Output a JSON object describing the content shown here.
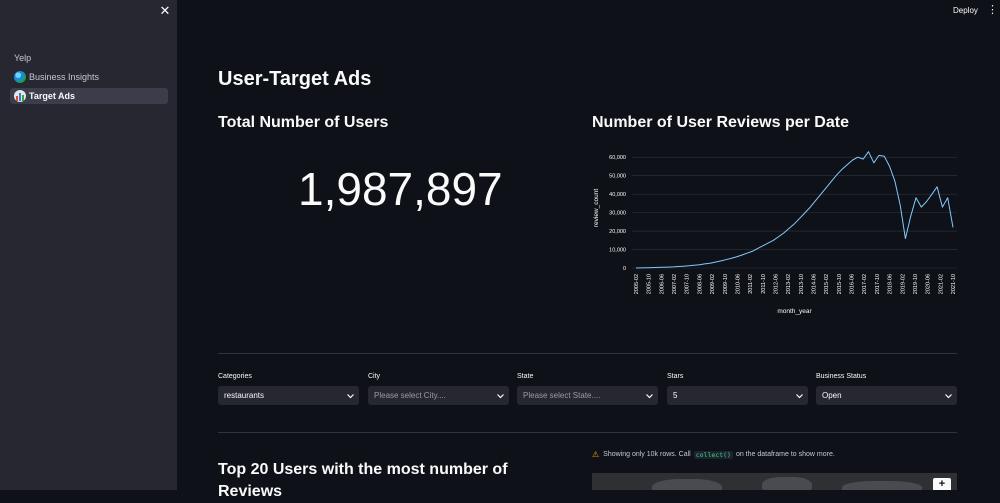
{
  "sidebar": {
    "section": "Yelp",
    "items": [
      {
        "label": "Business Insights",
        "icon": "globe-icon",
        "active": false
      },
      {
        "label": "Target Ads",
        "icon": "bar-chart-icon",
        "active": true
      }
    ]
  },
  "header": {
    "deploy_label": "Deploy"
  },
  "main": {
    "title": "User-Target Ads",
    "metric_heading": "Total Number of Users",
    "metric_value": "1,987,897",
    "chart_heading": "Number of User Reviews per Date",
    "filters": [
      {
        "label": "Categories",
        "value": "restaurants",
        "placeholder": false
      },
      {
        "label": "City",
        "value": "Please select City....",
        "placeholder": true
      },
      {
        "label": "State",
        "value": "Please select State....",
        "placeholder": true
      },
      {
        "label": "Stars",
        "value": "5",
        "placeholder": false
      },
      {
        "label": "Business Status",
        "value": "Open",
        "placeholder": false
      }
    ],
    "top_users_heading": "Top 20 Users with the most number of Reviews",
    "warning": {
      "before": "Showing only 10k rows. Call",
      "code": "collect()",
      "after": "on the dataframe to show more."
    },
    "map_zoom_label": "+"
  },
  "colors": {
    "background": "#0e1117",
    "sidebar": "#262730",
    "line": "#83c9ff",
    "warning": "#f0a50f"
  },
  "chart_data": {
    "type": "line",
    "xlabel": "month_year",
    "ylabel": "review_count",
    "ylim": [
      0,
      65000
    ],
    "yticks": [
      "0",
      "10,000",
      "20,000",
      "30,000",
      "40,000",
      "50,000",
      "60,000"
    ],
    "xticks": [
      "2005-02",
      "2005-10",
      "2006-06",
      "2007-02",
      "2007-10",
      "2008-06",
      "2009-02",
      "2009-10",
      "2010-06",
      "2011-02",
      "2011-10",
      "2012-06",
      "2013-02",
      "2013-10",
      "2014-06",
      "2015-02",
      "2015-10",
      "2016-06",
      "2017-02",
      "2017-10",
      "2018-06",
      "2019-02",
      "2019-10",
      "2020-06",
      "2021-02",
      "2021-10"
    ],
    "series": [
      {
        "values": [
          0,
          50,
          100,
          200,
          300,
          400,
          500,
          600,
          800,
          1000,
          1200,
          1500,
          1800,
          2200,
          2600,
          3200,
          3800,
          4500,
          5200,
          6000,
          7000,
          8000,
          9000,
          10500,
          12000,
          13500,
          15000,
          17000,
          19000,
          21500,
          24000,
          27000,
          30000,
          33000,
          36500,
          40000,
          43500,
          47000,
          50500,
          53500,
          56000,
          58500,
          60000,
          59000,
          63000,
          57000,
          61000,
          60500,
          55000,
          47000,
          34000,
          16000,
          28000,
          38000,
          33000,
          36000,
          40000,
          44000,
          33000,
          38000,
          22000
        ]
      }
    ]
  }
}
